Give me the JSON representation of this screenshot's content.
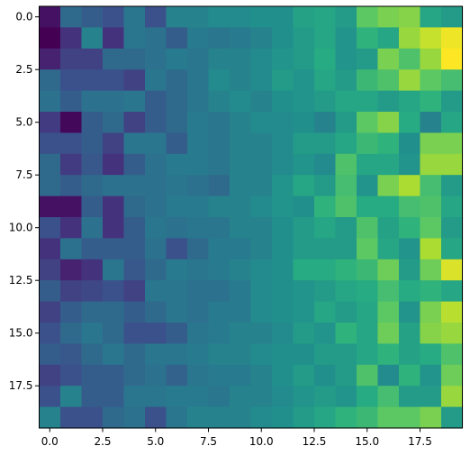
{
  "chart_data": {
    "type": "heatmap",
    "colormap": "viridis",
    "vmin": 0,
    "vmax": 1,
    "x_range": [
      -0.5,
      19.5
    ],
    "y_range": [
      19.5,
      -0.5
    ],
    "x_ticks": [
      {
        "value": 0.0,
        "label": "0.0"
      },
      {
        "value": 2.5,
        "label": "2.5"
      },
      {
        "value": 5.0,
        "label": "5.0"
      },
      {
        "value": 7.5,
        "label": "7.5"
      },
      {
        "value": 10.0,
        "label": "10.0"
      },
      {
        "value": 12.5,
        "label": "12.5"
      },
      {
        "value": 15.0,
        "label": "15.0"
      },
      {
        "value": 17.5,
        "label": "17.5"
      }
    ],
    "y_ticks": [
      {
        "value": 0.0,
        "label": "0.0"
      },
      {
        "value": 2.5,
        "label": "2.5"
      },
      {
        "value": 5.0,
        "label": "5.0"
      },
      {
        "value": 7.5,
        "label": "7.5"
      },
      {
        "value": 10.0,
        "label": "10.0"
      },
      {
        "value": 12.5,
        "label": "12.5"
      },
      {
        "value": 15.0,
        "label": "15.0"
      },
      {
        "value": 17.5,
        "label": "17.5"
      }
    ],
    "grid": false,
    "values": [
      [
        0.05,
        0.35,
        0.3,
        0.25,
        0.4,
        0.25,
        0.45,
        0.45,
        0.48,
        0.48,
        0.5,
        0.5,
        0.58,
        0.6,
        0.55,
        0.75,
        0.8,
        0.82,
        0.6,
        0.55
      ],
      [
        0.0,
        0.15,
        0.45,
        0.15,
        0.4,
        0.38,
        0.3,
        0.42,
        0.4,
        0.42,
        0.45,
        0.5,
        0.55,
        0.6,
        0.52,
        0.65,
        0.6,
        0.85,
        0.92,
        0.98
      ],
      [
        0.1,
        0.2,
        0.2,
        0.35,
        0.35,
        0.38,
        0.42,
        0.4,
        0.45,
        0.45,
        0.48,
        0.52,
        0.55,
        0.62,
        0.52,
        0.55,
        0.8,
        0.72,
        0.85,
        1.0
      ],
      [
        0.35,
        0.25,
        0.25,
        0.25,
        0.2,
        0.4,
        0.35,
        0.4,
        0.48,
        0.45,
        0.48,
        0.55,
        0.52,
        0.6,
        0.55,
        0.68,
        0.72,
        0.85,
        0.75,
        0.7
      ],
      [
        0.38,
        0.3,
        0.38,
        0.38,
        0.4,
        0.3,
        0.35,
        0.4,
        0.45,
        0.48,
        0.45,
        0.5,
        0.52,
        0.55,
        0.6,
        0.6,
        0.55,
        0.6,
        0.65,
        0.55
      ],
      [
        0.18,
        0.02,
        0.3,
        0.35,
        0.2,
        0.3,
        0.35,
        0.42,
        0.4,
        0.45,
        0.48,
        0.48,
        0.5,
        0.45,
        0.55,
        0.75,
        0.82,
        0.62,
        0.45,
        0.6
      ],
      [
        0.25,
        0.25,
        0.3,
        0.2,
        0.4,
        0.4,
        0.3,
        0.42,
        0.4,
        0.45,
        0.45,
        0.48,
        0.55,
        0.55,
        0.6,
        0.68,
        0.65,
        0.5,
        0.8,
        0.8
      ],
      [
        0.35,
        0.18,
        0.28,
        0.15,
        0.3,
        0.38,
        0.42,
        0.42,
        0.4,
        0.45,
        0.45,
        0.48,
        0.52,
        0.48,
        0.72,
        0.6,
        0.6,
        0.52,
        0.85,
        0.85
      ],
      [
        0.35,
        0.3,
        0.35,
        0.38,
        0.38,
        0.38,
        0.4,
        0.38,
        0.35,
        0.45,
        0.45,
        0.52,
        0.6,
        0.55,
        0.7,
        0.52,
        0.8,
        0.88,
        0.7,
        0.55
      ],
      [
        0.05,
        0.05,
        0.3,
        0.15,
        0.35,
        0.38,
        0.42,
        0.42,
        0.45,
        0.45,
        0.48,
        0.52,
        0.5,
        0.65,
        0.72,
        0.62,
        0.62,
        0.7,
        0.72,
        0.6
      ],
      [
        0.25,
        0.15,
        0.38,
        0.15,
        0.3,
        0.4,
        0.38,
        0.4,
        0.4,
        0.45,
        0.45,
        0.5,
        0.55,
        0.6,
        0.55,
        0.72,
        0.58,
        0.65,
        0.75,
        0.55
      ],
      [
        0.15,
        0.38,
        0.3,
        0.3,
        0.3,
        0.38,
        0.25,
        0.35,
        0.42,
        0.42,
        0.45,
        0.5,
        0.55,
        0.55,
        0.55,
        0.75,
        0.6,
        0.52,
        0.88,
        0.6
      ],
      [
        0.2,
        0.1,
        0.15,
        0.4,
        0.28,
        0.35,
        0.42,
        0.4,
        0.42,
        0.45,
        0.48,
        0.5,
        0.62,
        0.62,
        0.65,
        0.68,
        0.78,
        0.55,
        0.78,
        0.95
      ],
      [
        0.3,
        0.2,
        0.22,
        0.25,
        0.2,
        0.4,
        0.4,
        0.38,
        0.38,
        0.42,
        0.48,
        0.5,
        0.52,
        0.55,
        0.6,
        0.62,
        0.7,
        0.62,
        0.65,
        0.6
      ],
      [
        0.2,
        0.3,
        0.35,
        0.35,
        0.3,
        0.35,
        0.4,
        0.38,
        0.42,
        0.42,
        0.48,
        0.5,
        0.52,
        0.6,
        0.55,
        0.6,
        0.75,
        0.52,
        0.8,
        0.9
      ],
      [
        0.25,
        0.35,
        0.4,
        0.35,
        0.25,
        0.25,
        0.3,
        0.4,
        0.42,
        0.45,
        0.45,
        0.48,
        0.55,
        0.52,
        0.65,
        0.6,
        0.78,
        0.58,
        0.82,
        0.85
      ],
      [
        0.3,
        0.28,
        0.35,
        0.4,
        0.35,
        0.4,
        0.4,
        0.42,
        0.45,
        0.45,
        0.48,
        0.5,
        0.5,
        0.55,
        0.55,
        0.6,
        0.65,
        0.58,
        0.62,
        0.72
      ],
      [
        0.2,
        0.25,
        0.3,
        0.3,
        0.35,
        0.38,
        0.32,
        0.4,
        0.42,
        0.42,
        0.45,
        0.5,
        0.55,
        0.5,
        0.55,
        0.72,
        0.48,
        0.65,
        0.52,
        0.78
      ],
      [
        0.25,
        0.45,
        0.3,
        0.3,
        0.4,
        0.4,
        0.42,
        0.42,
        0.4,
        0.45,
        0.45,
        0.48,
        0.52,
        0.55,
        0.52,
        0.62,
        0.7,
        0.55,
        0.55,
        0.85
      ],
      [
        0.45,
        0.25,
        0.25,
        0.35,
        0.38,
        0.25,
        0.4,
        0.45,
        0.45,
        0.45,
        0.48,
        0.5,
        0.55,
        0.6,
        0.65,
        0.68,
        0.75,
        0.75,
        0.8,
        0.55
      ]
    ]
  }
}
